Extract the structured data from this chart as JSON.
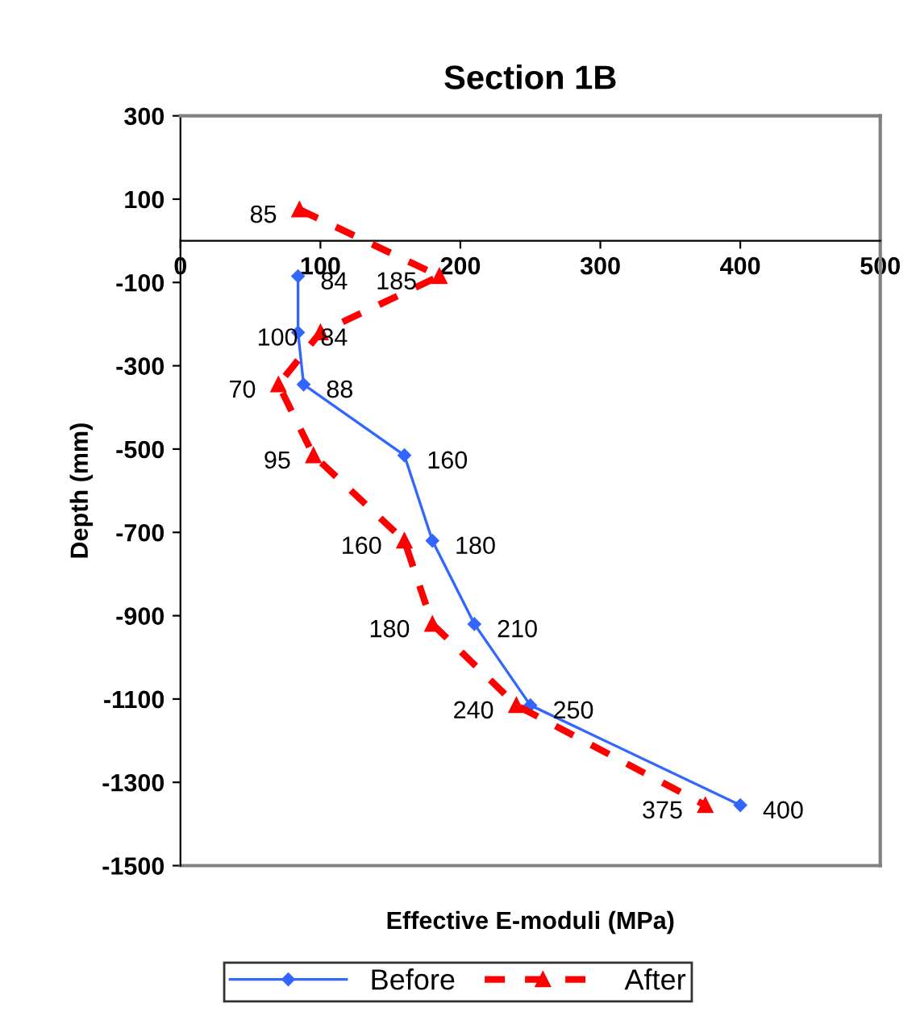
{
  "chart_data": {
    "type": "line",
    "orientation": "horizontal",
    "title": "Section 1B",
    "xlabel": "Effective E-moduli (MPa)",
    "ylabel": "Depth (mm)",
    "xlim": [
      0,
      500
    ],
    "xticks": [
      0,
      100,
      200,
      300,
      400,
      500
    ],
    "ylim": [
      -1500,
      300
    ],
    "yticks": [
      300,
      100,
      -100,
      -300,
      -500,
      -700,
      -900,
      -1100,
      -1300,
      -1500
    ],
    "grid": false,
    "legend": "bottom",
    "data_labels": true,
    "series": [
      {
        "name": "Before",
        "color": "#3366ff",
        "marker": "diamond",
        "line_style": "solid",
        "x": [
          -85,
          -220,
          -345,
          -515,
          -720,
          -920,
          -1115,
          -1355
        ],
        "values": [
          84,
          84,
          88,
          160,
          180,
          210,
          250,
          400
        ]
      },
      {
        "name": "After",
        "color": "#ff0000",
        "marker": "triangle",
        "line_style": "dashed",
        "x": [
          75,
          -85,
          -220,
          -345,
          -515,
          -720,
          -920,
          -1115,
          -1355
        ],
        "values": [
          85,
          185,
          100,
          70,
          95,
          160,
          180,
          240,
          375
        ]
      }
    ]
  }
}
